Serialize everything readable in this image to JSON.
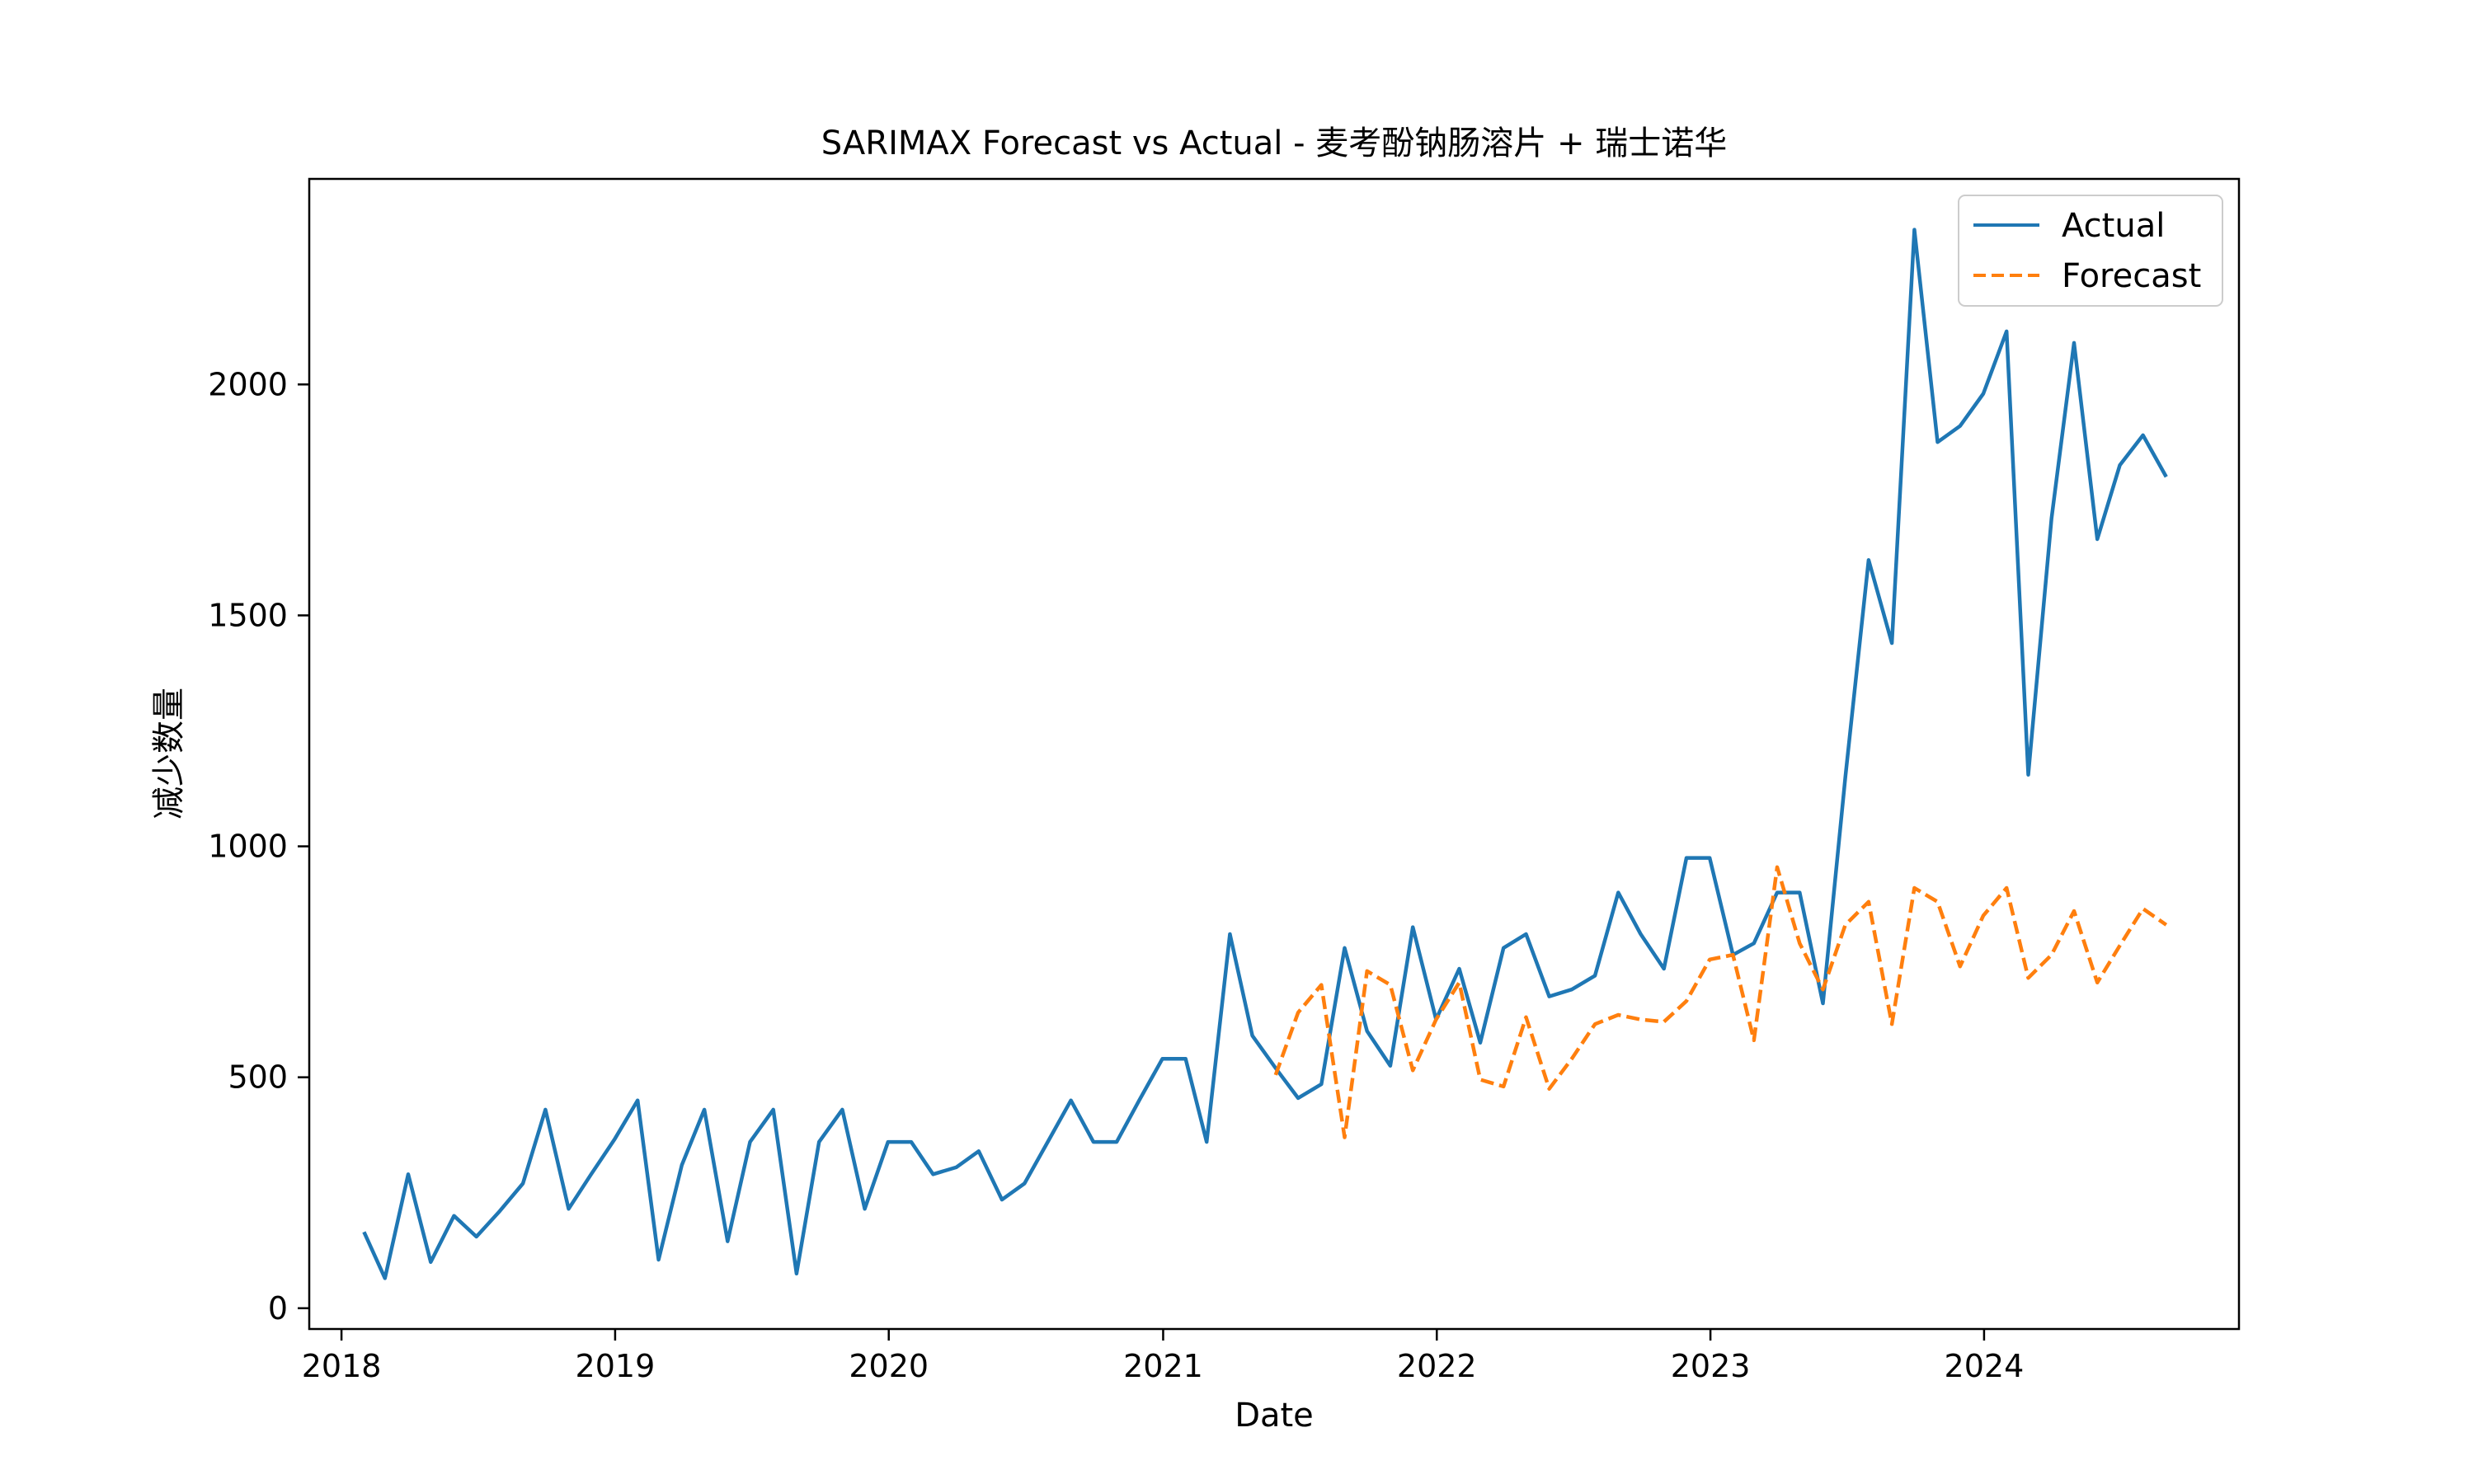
{
  "chart_data": {
    "type": "line",
    "title": "SARIMAX Forecast vs Actual - 麦考酚钠肠溶片 + 瑞士诺华",
    "xlabel": "Date",
    "ylabel": "减少数量",
    "x_ticks": [
      "2018",
      "2019",
      "2020",
      "2021",
      "2022",
      "2023",
      "2024"
    ],
    "y_ticks": [
      "0",
      "500",
      "1000",
      "1500",
      "2000"
    ],
    "xlim": [
      "2017-11-19",
      "2024-12-06"
    ],
    "ylim": [
      -45,
      2445
    ],
    "grid": false,
    "legend_position": "top-right",
    "series": [
      {
        "name": "Actual",
        "color": "#1f77b4",
        "style": "solid",
        "x": [
          "2018-01-31",
          "2018-02-28",
          "2018-03-31",
          "2018-04-30",
          "2018-05-31",
          "2018-06-30",
          "2018-07-31",
          "2018-08-31",
          "2018-09-30",
          "2018-10-31",
          "2018-11-30",
          "2018-12-31",
          "2019-01-31",
          "2019-02-28",
          "2019-03-31",
          "2019-04-30",
          "2019-05-31",
          "2019-06-30",
          "2019-07-31",
          "2019-08-31",
          "2019-09-30",
          "2019-10-31",
          "2019-11-30",
          "2019-12-31",
          "2020-01-31",
          "2020-02-29",
          "2020-03-31",
          "2020-04-30",
          "2020-05-31",
          "2020-06-30",
          "2020-07-31",
          "2020-08-31",
          "2020-09-30",
          "2020-10-31",
          "2020-11-30",
          "2020-12-31",
          "2021-01-31",
          "2021-02-28",
          "2021-03-31",
          "2021-04-30",
          "2021-05-31",
          "2021-06-30",
          "2021-07-31",
          "2021-08-31",
          "2021-09-30",
          "2021-10-31",
          "2021-11-30",
          "2021-12-31",
          "2022-01-31",
          "2022-02-28",
          "2022-03-31",
          "2022-04-30",
          "2022-05-31",
          "2022-06-30",
          "2022-07-31",
          "2022-08-31",
          "2022-09-30",
          "2022-10-31",
          "2022-11-30",
          "2022-12-31",
          "2023-01-31",
          "2023-02-28",
          "2023-03-31",
          "2023-04-30",
          "2023-05-31",
          "2023-06-30",
          "2023-07-31",
          "2023-08-31",
          "2023-09-30",
          "2023-10-31",
          "2023-11-30",
          "2023-12-31",
          "2024-01-31",
          "2024-02-29",
          "2024-03-31",
          "2024-04-30",
          "2024-05-31",
          "2024-06-30",
          "2024-07-31",
          "2024-08-31"
        ],
        "y": [
          165,
          65,
          290,
          100,
          200,
          155,
          210,
          270,
          430,
          215,
          290,
          365,
          450,
          105,
          310,
          430,
          145,
          360,
          430,
          75,
          360,
          430,
          215,
          360,
          360,
          290,
          305,
          340,
          235,
          270,
          360,
          450,
          360,
          360,
          450,
          540,
          540,
          360,
          810,
          590,
          520,
          455,
          485,
          780,
          600,
          525,
          825,
          625,
          735,
          575,
          780,
          810,
          675,
          690,
          720,
          900,
          810,
          735,
          975,
          975,
          765,
          790,
          900,
          900,
          660,
          1150,
          1620,
          1440,
          2335,
          1875,
          1910,
          1980,
          2115,
          1155,
          1710,
          2090,
          1665,
          1825,
          1890,
          1800
        ]
      },
      {
        "name": "Forecast",
        "color": "#ff7f0e",
        "style": "dashed",
        "x": [
          "2021-05-31",
          "2021-06-30",
          "2021-07-31",
          "2021-08-31",
          "2021-09-30",
          "2021-10-31",
          "2021-11-30",
          "2021-12-31",
          "2022-01-31",
          "2022-02-28",
          "2022-03-31",
          "2022-04-30",
          "2022-05-31",
          "2022-06-30",
          "2022-07-31",
          "2022-08-31",
          "2022-09-30",
          "2022-10-31",
          "2022-11-30",
          "2022-12-31",
          "2023-01-31",
          "2023-02-28",
          "2023-03-31",
          "2023-04-30",
          "2023-05-31",
          "2023-06-30",
          "2023-07-31",
          "2023-08-31",
          "2023-09-30",
          "2023-10-31",
          "2023-11-30",
          "2023-12-31",
          "2024-01-31",
          "2024-02-29",
          "2024-03-31",
          "2024-04-30",
          "2024-05-31",
          "2024-06-30",
          "2024-07-31",
          "2024-08-31"
        ],
        "y": [
          505,
          640,
          700,
          370,
          730,
          700,
          515,
          625,
          705,
          495,
          480,
          630,
          475,
          540,
          615,
          635,
          625,
          620,
          665,
          755,
          765,
          580,
          955,
          790,
          690,
          830,
          880,
          615,
          910,
          880,
          740,
          850,
          910,
          715,
          765,
          860,
          705,
          785,
          865,
          830
        ]
      }
    ]
  }
}
